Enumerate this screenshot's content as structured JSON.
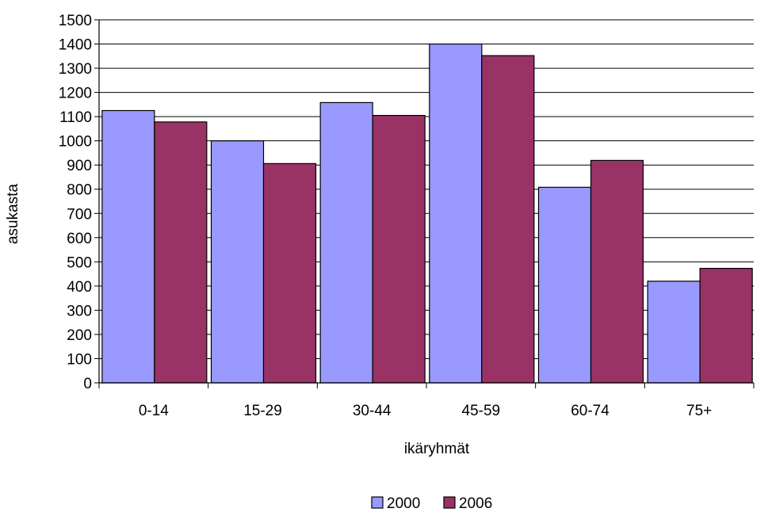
{
  "chart_data": {
    "type": "bar",
    "title": "",
    "xlabel": "ikäryhmät",
    "ylabel": "asukasta",
    "categories": [
      "0-14",
      "15-29",
      "30-44",
      "45-59",
      "60-74",
      "75+"
    ],
    "series": [
      {
        "name": "2000",
        "values": [
          1125,
          1000,
          1158,
          1400,
          808,
          420
        ],
        "color": "#9999ff"
      },
      {
        "name": "2006",
        "values": [
          1078,
          906,
          1105,
          1352,
          919,
          473
        ],
        "color": "#993366"
      }
    ],
    "ylim": [
      0,
      1500
    ],
    "ytick_step": 100,
    "grid": true,
    "legend_position": "bottom-center"
  }
}
